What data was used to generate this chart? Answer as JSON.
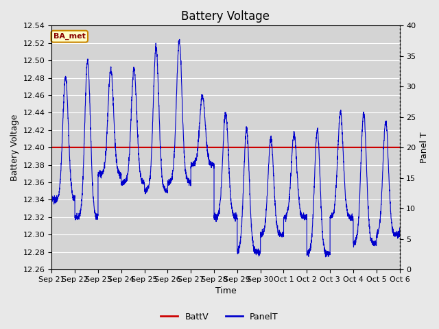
{
  "title": "Battery Voltage",
  "xlabel": "Time",
  "ylabel_left": "Battery Voltage",
  "ylabel_right": "Panel T",
  "ylim_left": [
    12.26,
    12.54
  ],
  "ylim_right": [
    0,
    40
  ],
  "yticks_left": [
    12.26,
    12.28,
    12.3,
    12.32,
    12.34,
    12.36,
    12.38,
    12.4,
    12.42,
    12.44,
    12.46,
    12.48,
    12.5,
    12.52,
    12.54
  ],
  "yticks_right": [
    0,
    5,
    10,
    15,
    20,
    25,
    30,
    35,
    40
  ],
  "batt_v": 12.4,
  "batt_color": "#cc0000",
  "panel_color": "#0000cc",
  "bg_color": "#e8e8e8",
  "plot_bg_color": "#d4d4d4",
  "legend_batt": "BattV",
  "legend_panel": "PanelT",
  "annotation_text": "BA_met",
  "annotation_bg": "#ffffcc",
  "annotation_border": "#cc8800",
  "annotation_text_color": "#880000",
  "x_tick_labels": [
    "Sep 21",
    "Sep 22",
    "Sep 23",
    "Sep 24",
    "Sep 25",
    "Sep 26",
    "Sep 27",
    "Sep 28",
    "Sep 29",
    "Sep 30",
    "Oct 1",
    "Oct 2",
    "Oct 3",
    "Oct 4",
    "Oct 5",
    "Oct 6"
  ],
  "num_days": 16,
  "title_fontsize": 12,
  "axis_label_fontsize": 9,
  "tick_fontsize": 8
}
